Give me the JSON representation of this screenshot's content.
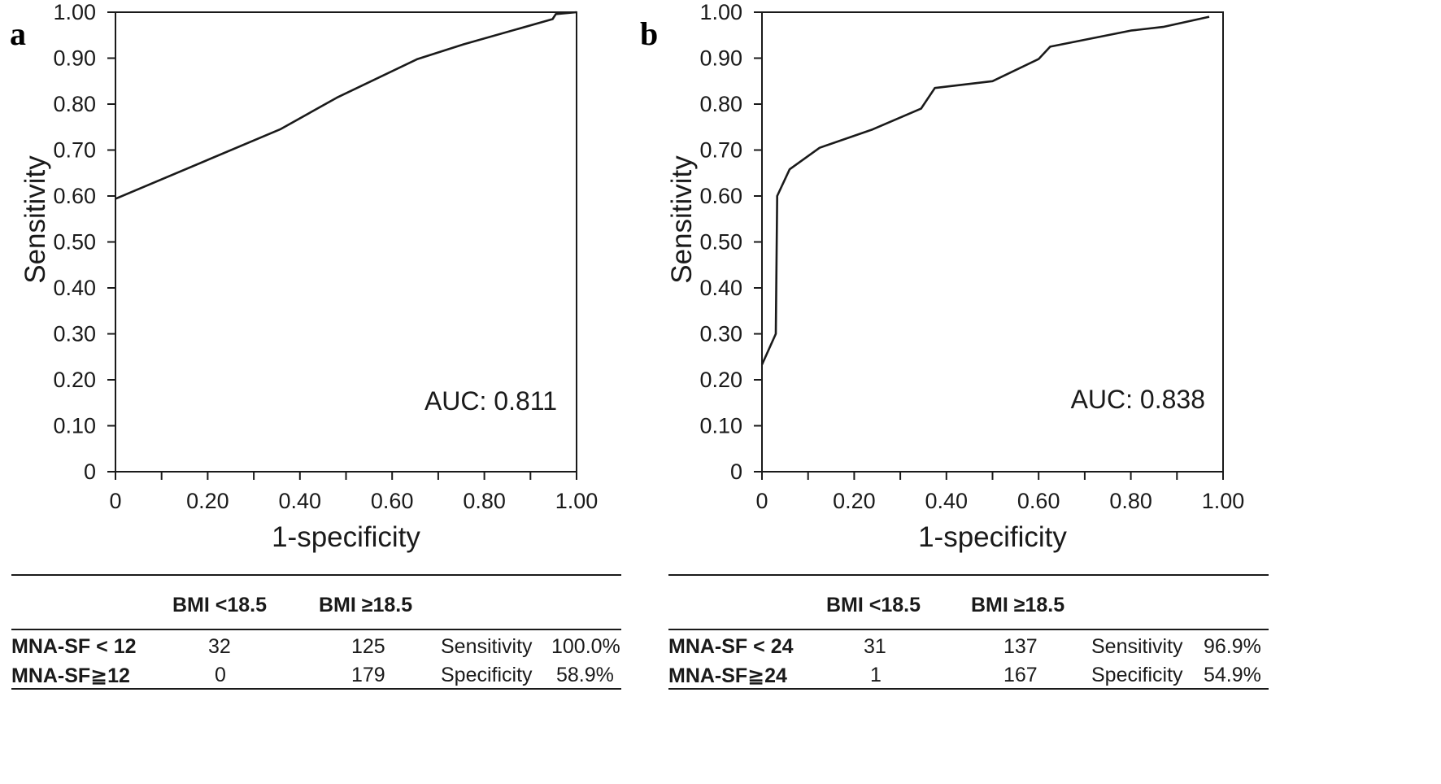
{
  "chart_data": [
    {
      "type": "line",
      "panel_label": "a",
      "xlabel": "1-specificity",
      "ylabel": "Sensitivity",
      "xlim": [
        0,
        1
      ],
      "ylim": [
        0,
        1
      ],
      "x_ticks": [
        "0",
        "0.20",
        "0.40",
        "0.60",
        "0.80",
        "1.00"
      ],
      "y_ticks": [
        "0",
        "0.10",
        "0.20",
        "0.30",
        "0.40",
        "0.50",
        "0.60",
        "0.70",
        "0.80",
        "0.90",
        "1.00"
      ],
      "annotation": "AUC: 0.811",
      "grid": false,
      "series": [
        {
          "x": [
            0,
            0.357,
            0.48,
            0.655,
            0.755,
            0.948,
            0.955,
            1.0
          ],
          "y": [
            0.594,
            0.745,
            0.814,
            0.898,
            0.93,
            0.985,
            0.996,
            1.0
          ]
        }
      ]
    },
    {
      "type": "line",
      "panel_label": "b",
      "xlabel": "1-specificity",
      "ylabel": "Sensitivity",
      "xlim": [
        0,
        1
      ],
      "ylim": [
        0,
        1
      ],
      "x_ticks": [
        "0",
        "0.20",
        "0.40",
        "0.60",
        "0.80",
        "1.00"
      ],
      "y_ticks": [
        "0",
        "0.10",
        "0.20",
        "0.30",
        "0.40",
        "0.50",
        "0.60",
        "0.70",
        "0.80",
        "0.90",
        "1.00"
      ],
      "annotation": "AUC: 0.838",
      "grid": false,
      "series": [
        {
          "x": [
            0,
            0.03,
            0.033,
            0.06,
            0.125,
            0.24,
            0.345,
            0.375,
            0.5,
            0.6,
            0.625,
            0.8,
            0.87,
            0.97
          ],
          "y": [
            0.233,
            0.3,
            0.6,
            0.658,
            0.705,
            0.745,
            0.79,
            0.835,
            0.85,
            0.898,
            0.925,
            0.96,
            0.968,
            0.99
          ]
        }
      ]
    }
  ],
  "tables": [
    {
      "headers": [
        "BMI <18.5",
        "BMI ≥18.5"
      ],
      "rows": [
        {
          "label": "MNA-SF < 12",
          "c1": "32",
          "c2": "125",
          "stat": "Sensitivity",
          "value": "100.0%"
        },
        {
          "label": "MNA-SF≧12",
          "c1": "0",
          "c2": "179",
          "stat": "Specificity",
          "value": "58.9%"
        }
      ]
    },
    {
      "headers": [
        "BMI <18.5",
        "BMI ≥18.5"
      ],
      "rows": [
        {
          "label": "MNA-SF < 24",
          "c1": "31",
          "c2": "137",
          "stat": "Sensitivity",
          "value": "96.9%"
        },
        {
          "label": "MNA-SF≧24",
          "c1": "1",
          "c2": "167",
          "stat": "Specificity",
          "value": "54.9%"
        }
      ]
    }
  ]
}
